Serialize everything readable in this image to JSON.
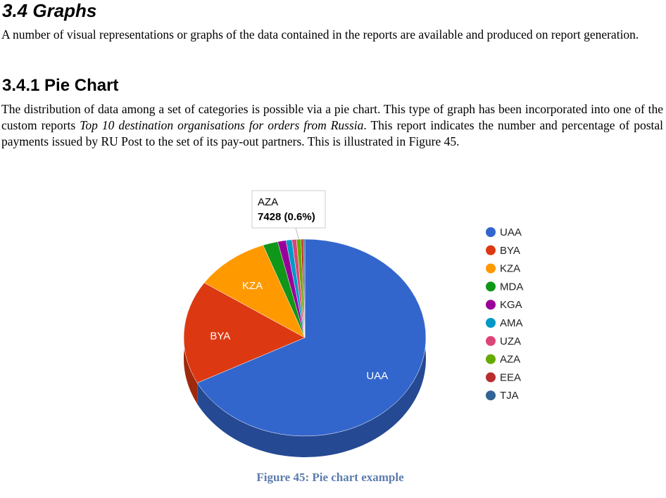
{
  "section": {
    "heading": "3.4  Graphs",
    "intro": "A number of visual representations or graphs of the data contained in the reports are available and produced on report generation."
  },
  "subsection": {
    "heading": "3.4.1  Pie Chart",
    "text_before": "The distribution of data among a set of categories is possible via a pie chart. This type of graph has been incorporated into one of the custom reports ",
    "text_italic": "Top 10 destination organisations for orders from Russia",
    "text_after": ". This report indicates the number and percentage of postal payments issued by RU Post to the set of its pay-out partners. This is illustrated in Figure 45."
  },
  "chart_data": {
    "type": "pie",
    "categories": [
      "UAA",
      "BYA",
      "KZA",
      "MDA",
      "KGA",
      "AMA",
      "UZA",
      "AZA",
      "EEA",
      "TJA"
    ],
    "values": [
      67.4,
      17,
      10,
      2,
      1.1,
      0.8,
      0.6,
      0.6,
      0.3,
      0.2
    ],
    "colors": [
      "#3366cc",
      "#dc3912",
      "#ff9900",
      "#109618",
      "#990099",
      "#0099c6",
      "#dd4477",
      "#66aa00",
      "#b82e2e",
      "#316395"
    ],
    "tooltip": "7428 (0.6%)",
    "legend": "right"
  },
  "caption": "Figure 45: Pie chart example"
}
